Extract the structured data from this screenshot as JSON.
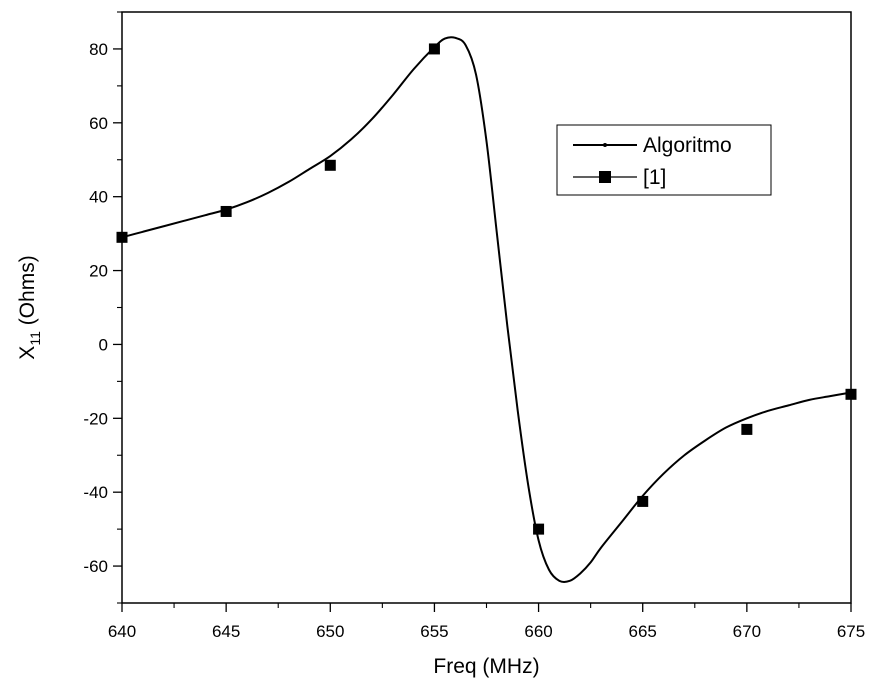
{
  "chart_data": {
    "type": "line",
    "xlabel": "Freq (MHz)",
    "ylabel_main": "X",
    "ylabel_sub": "11",
    "ylabel_rest": " (Ohms)",
    "xlim": [
      640,
      675
    ],
    "ylim": [
      -70,
      90
    ],
    "xticks": [
      640,
      645,
      650,
      655,
      660,
      665,
      670,
      675
    ],
    "yticks": [
      -60,
      -40,
      -20,
      0,
      20,
      40,
      60,
      80
    ],
    "grid": false,
    "legend_position": "top-right",
    "series": [
      {
        "name": "Algoritmo",
        "style": "line",
        "x": [
          640,
          641,
          642,
          643,
          644,
          645,
          646,
          647,
          648,
          649,
          650,
          651,
          652,
          653,
          654,
          655,
          655.5,
          656,
          656.5,
          657,
          657.5,
          658,
          658.5,
          659,
          659.5,
          660,
          660.5,
          661,
          661.5,
          662,
          662.5,
          663,
          664,
          665,
          666,
          667,
          668,
          669,
          670,
          671,
          672,
          673,
          674,
          675
        ],
        "y": [
          29,
          30.5,
          32,
          33.5,
          35,
          36.5,
          38.5,
          41,
          44,
          47.5,
          51,
          55.5,
          61,
          67.5,
          74.5,
          80.5,
          82.8,
          83,
          81,
          73,
          55,
          30,
          5,
          -18,
          -38,
          -53,
          -61,
          -64,
          -64,
          -62,
          -59,
          -55,
          -48,
          -41,
          -35,
          -30,
          -26,
          -22.5,
          -20,
          -18,
          -16.5,
          -15,
          -14,
          -13
        ]
      },
      {
        "name": "[1]",
        "style": "line-markers",
        "x": [
          640,
          645,
          650,
          655,
          660,
          665,
          670,
          675
        ],
        "y": [
          29,
          36,
          48.5,
          80,
          -50,
          -42.5,
          -23,
          -13.5
        ]
      }
    ]
  }
}
